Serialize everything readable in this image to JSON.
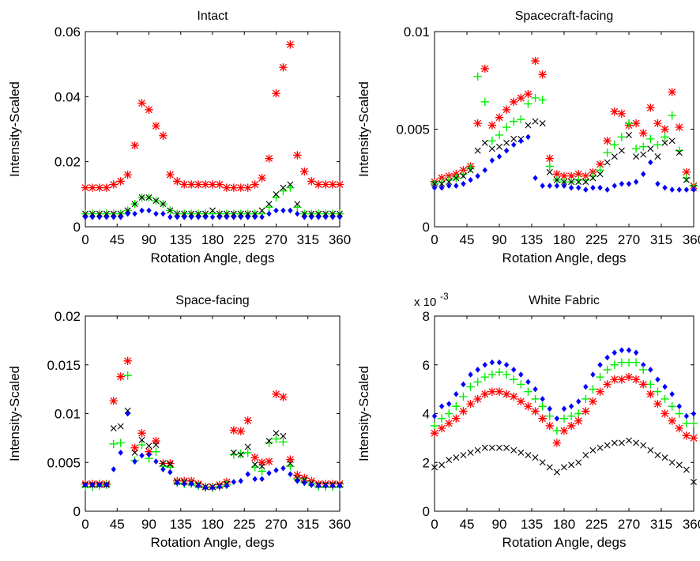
{
  "figure": {
    "series_colors": {
      "red_star": "#ff0000",
      "green_plus": "#00ee00",
      "blue_diamond": "#0000ff",
      "black_x": "#000000"
    }
  },
  "chart_data": [
    {
      "type": "scatter",
      "title": "Intact",
      "xlabel": "Rotation Angle, degs",
      "ylabel": "Intensity-Scaled",
      "xlim": [
        0,
        360
      ],
      "ylim": [
        0,
        0.06
      ],
      "xtick_labels": [
        "0",
        "45",
        "90",
        "135",
        "180",
        "225",
        "270",
        "315",
        "360"
      ],
      "ytick_labels": [
        "0",
        "0.02",
        "0.04",
        "0.06"
      ],
      "ytick_values": [
        0,
        0.02,
        0.04,
        0.06
      ],
      "multiplier_label": "",
      "x": [
        0,
        10,
        20,
        30,
        40,
        50,
        60,
        70,
        80,
        90,
        100,
        110,
        120,
        130,
        140,
        150,
        160,
        170,
        180,
        190,
        200,
        210,
        220,
        230,
        240,
        250,
        260,
        270,
        280,
        290,
        300,
        310,
        320,
        330,
        340,
        350,
        360
      ],
      "series": [
        {
          "marker": "star",
          "color": "#ff0000",
          "values": [
            0.012,
            0.012,
            0.012,
            0.012,
            0.013,
            0.014,
            0.016,
            0.025,
            0.038,
            0.036,
            0.031,
            0.028,
            0.016,
            0.014,
            0.013,
            0.013,
            0.013,
            0.013,
            0.013,
            0.013,
            0.012,
            0.012,
            0.012,
            0.012,
            0.013,
            0.015,
            0.021,
            0.041,
            0.049,
            0.056,
            0.022,
            0.017,
            0.014,
            0.013,
            0.013,
            0.013,
            0.013
          ]
        },
        {
          "marker": "plus",
          "color": "#00ee00",
          "values": [
            0.004,
            0.004,
            0.004,
            0.004,
            0.004,
            0.004,
            0.005,
            0.007,
            0.009,
            0.009,
            0.008,
            0.007,
            0.005,
            0.004,
            0.004,
            0.004,
            0.004,
            0.004,
            0.004,
            0.004,
            0.004,
            0.004,
            0.004,
            0.004,
            0.004,
            0.004,
            0.006,
            0.009,
            0.011,
            0.012,
            0.006,
            0.004,
            0.004,
            0.004,
            0.004,
            0.004,
            0.004
          ]
        },
        {
          "marker": "x",
          "color": "#000000",
          "values": [
            0.004,
            0.004,
            0.004,
            0.004,
            0.004,
            0.004,
            0.005,
            0.007,
            0.009,
            0.009,
            0.008,
            0.007,
            0.005,
            0.004,
            0.004,
            0.004,
            0.004,
            0.004,
            0.005,
            0.004,
            0.004,
            0.004,
            0.004,
            0.004,
            0.004,
            0.005,
            0.007,
            0.01,
            0.012,
            0.013,
            0.007,
            0.004,
            0.004,
            0.004,
            0.004,
            0.004,
            0.004
          ]
        },
        {
          "marker": "diamond",
          "color": "#0000ff",
          "values": [
            0.003,
            0.003,
            0.003,
            0.003,
            0.003,
            0.003,
            0.004,
            0.004,
            0.005,
            0.005,
            0.004,
            0.004,
            0.003,
            0.003,
            0.003,
            0.003,
            0.003,
            0.003,
            0.003,
            0.003,
            0.003,
            0.003,
            0.003,
            0.003,
            0.003,
            0.003,
            0.004,
            0.005,
            0.005,
            0.005,
            0.004,
            0.003,
            0.003,
            0.003,
            0.003,
            0.003,
            0.003
          ]
        }
      ]
    },
    {
      "type": "scatter",
      "title": "Spacecraft-facing",
      "xlabel": "Rotation Angle, degs",
      "ylabel": "Intensity-Scaled",
      "xlim": [
        0,
        360
      ],
      "ylim": [
        0,
        0.01
      ],
      "xtick_labels": [
        "0",
        "45",
        "90",
        "135",
        "180",
        "225",
        "270",
        "315",
        "360"
      ],
      "ytick_labels": [
        "0",
        "0.005",
        "0.01"
      ],
      "ytick_values": [
        0,
        0.005,
        0.01
      ],
      "multiplier_label": "",
      "x": [
        0,
        10,
        20,
        30,
        40,
        50,
        60,
        70,
        80,
        90,
        100,
        110,
        120,
        130,
        140,
        150,
        160,
        170,
        180,
        190,
        200,
        210,
        220,
        230,
        240,
        250,
        260,
        270,
        280,
        290,
        300,
        310,
        320,
        330,
        340,
        350,
        360
      ],
      "series": [
        {
          "marker": "star",
          "color": "#ff0000",
          "values": [
            0.0023,
            0.0025,
            0.0026,
            0.0027,
            0.0029,
            0.0031,
            0.0053,
            0.0081,
            0.0052,
            0.0056,
            0.006,
            0.0064,
            0.0066,
            0.0068,
            0.0085,
            0.0078,
            0.0035,
            0.0027,
            0.0026,
            0.0026,
            0.0027,
            0.0026,
            0.0028,
            0.0032,
            0.0044,
            0.0059,
            0.0058,
            0.0052,
            0.0053,
            0.0048,
            0.0061,
            0.0053,
            0.005,
            0.0069,
            0.0051,
            0.0028,
            0.0021
          ]
        },
        {
          "marker": "plus",
          "color": "#00ee00",
          "values": [
            0.0022,
            0.0023,
            0.0024,
            0.0025,
            0.0027,
            0.003,
            0.0077,
            0.0064,
            0.0044,
            0.0047,
            0.0051,
            0.0054,
            0.0055,
            0.0063,
            0.0066,
            0.0065,
            0.0031,
            0.0024,
            0.0023,
            0.0023,
            0.0024,
            0.0024,
            0.0026,
            0.0029,
            0.0038,
            0.0042,
            0.0046,
            0.0053,
            0.004,
            0.0041,
            0.0045,
            0.0042,
            0.0046,
            0.0057,
            0.0039,
            0.0025,
            0.0021
          ]
        },
        {
          "marker": "x",
          "color": "#000000",
          "values": [
            0.0022,
            0.0022,
            0.0023,
            0.0025,
            0.0026,
            0.0029,
            0.0039,
            0.0043,
            0.004,
            0.0041,
            0.0043,
            0.0045,
            0.0045,
            0.0052,
            0.0054,
            0.0053,
            0.0028,
            0.0024,
            0.0023,
            0.0023,
            0.0023,
            0.0023,
            0.0025,
            0.0027,
            0.0033,
            0.0036,
            0.0039,
            0.0047,
            0.0036,
            0.0037,
            0.004,
            0.0036,
            0.0043,
            0.0044,
            0.0038,
            0.0024,
            0.002
          ]
        },
        {
          "marker": "diamond",
          "color": "#0000ff",
          "values": [
            0.002,
            0.002,
            0.0021,
            0.0021,
            0.0022,
            0.0024,
            0.0026,
            0.0029,
            0.0034,
            0.0036,
            0.0039,
            0.0042,
            0.0044,
            0.0046,
            0.0025,
            0.0021,
            0.0021,
            0.0021,
            0.0021,
            0.002,
            0.002,
            0.0019,
            0.002,
            0.002,
            0.0019,
            0.0021,
            0.0022,
            0.0022,
            0.0023,
            0.0027,
            0.0033,
            0.0022,
            0.002,
            0.0019,
            0.0019,
            0.0019,
            0.0019
          ]
        }
      ]
    },
    {
      "type": "scatter",
      "title": "Space-facing",
      "xlabel": "Rotation Angle, degs",
      "ylabel": "Intensity-Scaled",
      "xlim": [
        0,
        360
      ],
      "ylim": [
        0,
        0.02
      ],
      "xtick_labels": [
        "0",
        "45",
        "90",
        "135",
        "180",
        "225",
        "270",
        "315",
        "360"
      ],
      "ytick_labels": [
        "0",
        "0.005",
        "0.01",
        "0.015",
        "0.02"
      ],
      "ytick_values": [
        0,
        0.005,
        0.01,
        0.015,
        0.02
      ],
      "multiplier_label": "",
      "x": [
        0,
        10,
        20,
        30,
        40,
        50,
        60,
        70,
        80,
        90,
        100,
        110,
        120,
        130,
        140,
        150,
        160,
        170,
        180,
        190,
        200,
        210,
        220,
        230,
        240,
        250,
        260,
        270,
        280,
        290,
        300,
        310,
        320,
        330,
        340,
        350,
        360
      ],
      "series": [
        {
          "marker": "star",
          "color": "#ff0000",
          "values": [
            0.0028,
            0.0028,
            0.0028,
            0.0028,
            0.0113,
            0.0138,
            0.0154,
            0.0065,
            0.008,
            0.0061,
            0.0072,
            0.0049,
            0.0049,
            0.0031,
            0.0031,
            0.0031,
            0.0028,
            0.0025,
            0.0025,
            0.0027,
            0.003,
            0.0083,
            0.0082,
            0.0093,
            0.0055,
            0.005,
            0.0051,
            0.012,
            0.0117,
            0.0053,
            0.0037,
            0.0034,
            0.0031,
            0.0028,
            0.0028,
            0.0028,
            0.0028
          ]
        },
        {
          "marker": "plus",
          "color": "#00ee00",
          "values": [
            0.0025,
            0.0025,
            0.0026,
            0.0027,
            0.0069,
            0.007,
            0.0139,
            0.0052,
            0.0068,
            0.0054,
            0.0061,
            0.0046,
            0.0045,
            0.0029,
            0.0028,
            0.0028,
            0.0026,
            0.0024,
            0.0024,
            0.0025,
            0.0027,
            0.0058,
            0.0059,
            0.006,
            0.0045,
            0.0041,
            0.007,
            0.0074,
            0.0071,
            0.0046,
            0.0033,
            0.003,
            0.0028,
            0.0025,
            0.0025,
            0.0025,
            0.0025
          ]
        },
        {
          "marker": "x",
          "color": "#000000",
          "values": [
            0.0027,
            0.0027,
            0.0027,
            0.0027,
            0.0085,
            0.0087,
            0.0103,
            0.006,
            0.0073,
            0.0067,
            0.0068,
            0.0049,
            0.0048,
            0.003,
            0.003,
            0.0029,
            0.0027,
            0.0025,
            0.0025,
            0.0026,
            0.0028,
            0.006,
            0.0058,
            0.0066,
            0.0048,
            0.0046,
            0.0072,
            0.008,
            0.0077,
            0.0049,
            0.0034,
            0.0032,
            0.0029,
            0.0027,
            0.0027,
            0.0027,
            0.0027
          ]
        },
        {
          "marker": "diamond",
          "color": "#0000ff",
          "values": [
            0.0027,
            0.0027,
            0.0027,
            0.0027,
            0.0043,
            0.006,
            0.01,
            0.0051,
            0.0057,
            0.0058,
            0.0051,
            0.0043,
            0.004,
            0.0029,
            0.0028,
            0.0028,
            0.0026,
            0.0024,
            0.0024,
            0.0025,
            0.0026,
            0.003,
            0.0031,
            0.0038,
            0.0033,
            0.0033,
            0.0039,
            0.0042,
            0.0044,
            0.0038,
            0.0031,
            0.0029,
            0.0027,
            0.0026,
            0.0026,
            0.0026,
            0.0026
          ]
        }
      ]
    },
    {
      "type": "scatter",
      "title": "White Fabric",
      "xlabel": "Rotation Angle, degs",
      "ylabel": "Intensity-Scaled",
      "xlim": [
        0,
        360
      ],
      "ylim": [
        0,
        8
      ],
      "xtick_labels": [
        "0",
        "45",
        "90",
        "135",
        "180",
        "225",
        "270",
        "315",
        "360"
      ],
      "ytick_labels": [
        "0",
        "2",
        "4",
        "6",
        "8"
      ],
      "ytick_values": [
        0,
        2,
        4,
        6,
        8
      ],
      "multiplier_label": "x 10",
      "multiplier_exponent": "-3",
      "x": [
        0,
        10,
        20,
        30,
        40,
        50,
        60,
        70,
        80,
        90,
        100,
        110,
        120,
        130,
        140,
        150,
        160,
        170,
        180,
        190,
        200,
        210,
        220,
        230,
        240,
        250,
        260,
        270,
        280,
        290,
        300,
        310,
        320,
        330,
        340,
        350,
        360
      ],
      "series": [
        {
          "marker": "diamond",
          "color": "#0000ff",
          "values": [
            3.9,
            4.3,
            4.4,
            4.8,
            5.2,
            5.6,
            5.8,
            6.0,
            6.1,
            6.1,
            6.0,
            5.8,
            5.6,
            5.3,
            5.0,
            4.6,
            4.2,
            3.8,
            4.2,
            4.3,
            4.5,
            5.1,
            5.6,
            6.0,
            6.3,
            6.5,
            6.6,
            6.6,
            6.5,
            6.0,
            5.8,
            5.4,
            5.1,
            4.8,
            4.3,
            3.9,
            4.0
          ]
        },
        {
          "marker": "plus",
          "color": "#00ee00",
          "values": [
            3.5,
            3.8,
            4.0,
            4.3,
            4.7,
            5.1,
            5.3,
            5.5,
            5.6,
            5.7,
            5.6,
            5.4,
            5.2,
            4.9,
            4.6,
            4.3,
            3.9,
            3.3,
            3.8,
            3.9,
            4.0,
            4.6,
            5.0,
            5.5,
            5.8,
            6.0,
            6.1,
            6.1,
            6.1,
            5.8,
            5.2,
            4.9,
            4.6,
            4.3,
            4.0,
            3.6,
            3.6
          ]
        },
        {
          "marker": "star",
          "color": "#ff0000",
          "values": [
            3.2,
            3.4,
            3.6,
            3.8,
            4.1,
            4.4,
            4.6,
            4.8,
            4.9,
            4.9,
            4.8,
            4.7,
            4.5,
            4.3,
            4.1,
            3.8,
            3.5,
            2.8,
            3.3,
            3.5,
            3.7,
            4.1,
            4.5,
            4.9,
            5.2,
            5.4,
            5.4,
            5.5,
            5.4,
            5.2,
            4.8,
            4.4,
            4.0,
            3.7,
            3.4,
            3.1,
            3.0
          ]
        },
        {
          "marker": "x",
          "color": "#000000",
          "values": [
            1.8,
            1.9,
            2.1,
            2.2,
            2.3,
            2.4,
            2.5,
            2.6,
            2.6,
            2.6,
            2.6,
            2.5,
            2.4,
            2.3,
            2.2,
            2.0,
            1.8,
            1.6,
            1.8,
            1.9,
            2.0,
            2.3,
            2.5,
            2.6,
            2.7,
            2.8,
            2.8,
            2.9,
            2.8,
            2.7,
            2.5,
            2.3,
            2.2,
            2.0,
            1.9,
            1.7,
            1.2
          ]
        }
      ]
    }
  ]
}
